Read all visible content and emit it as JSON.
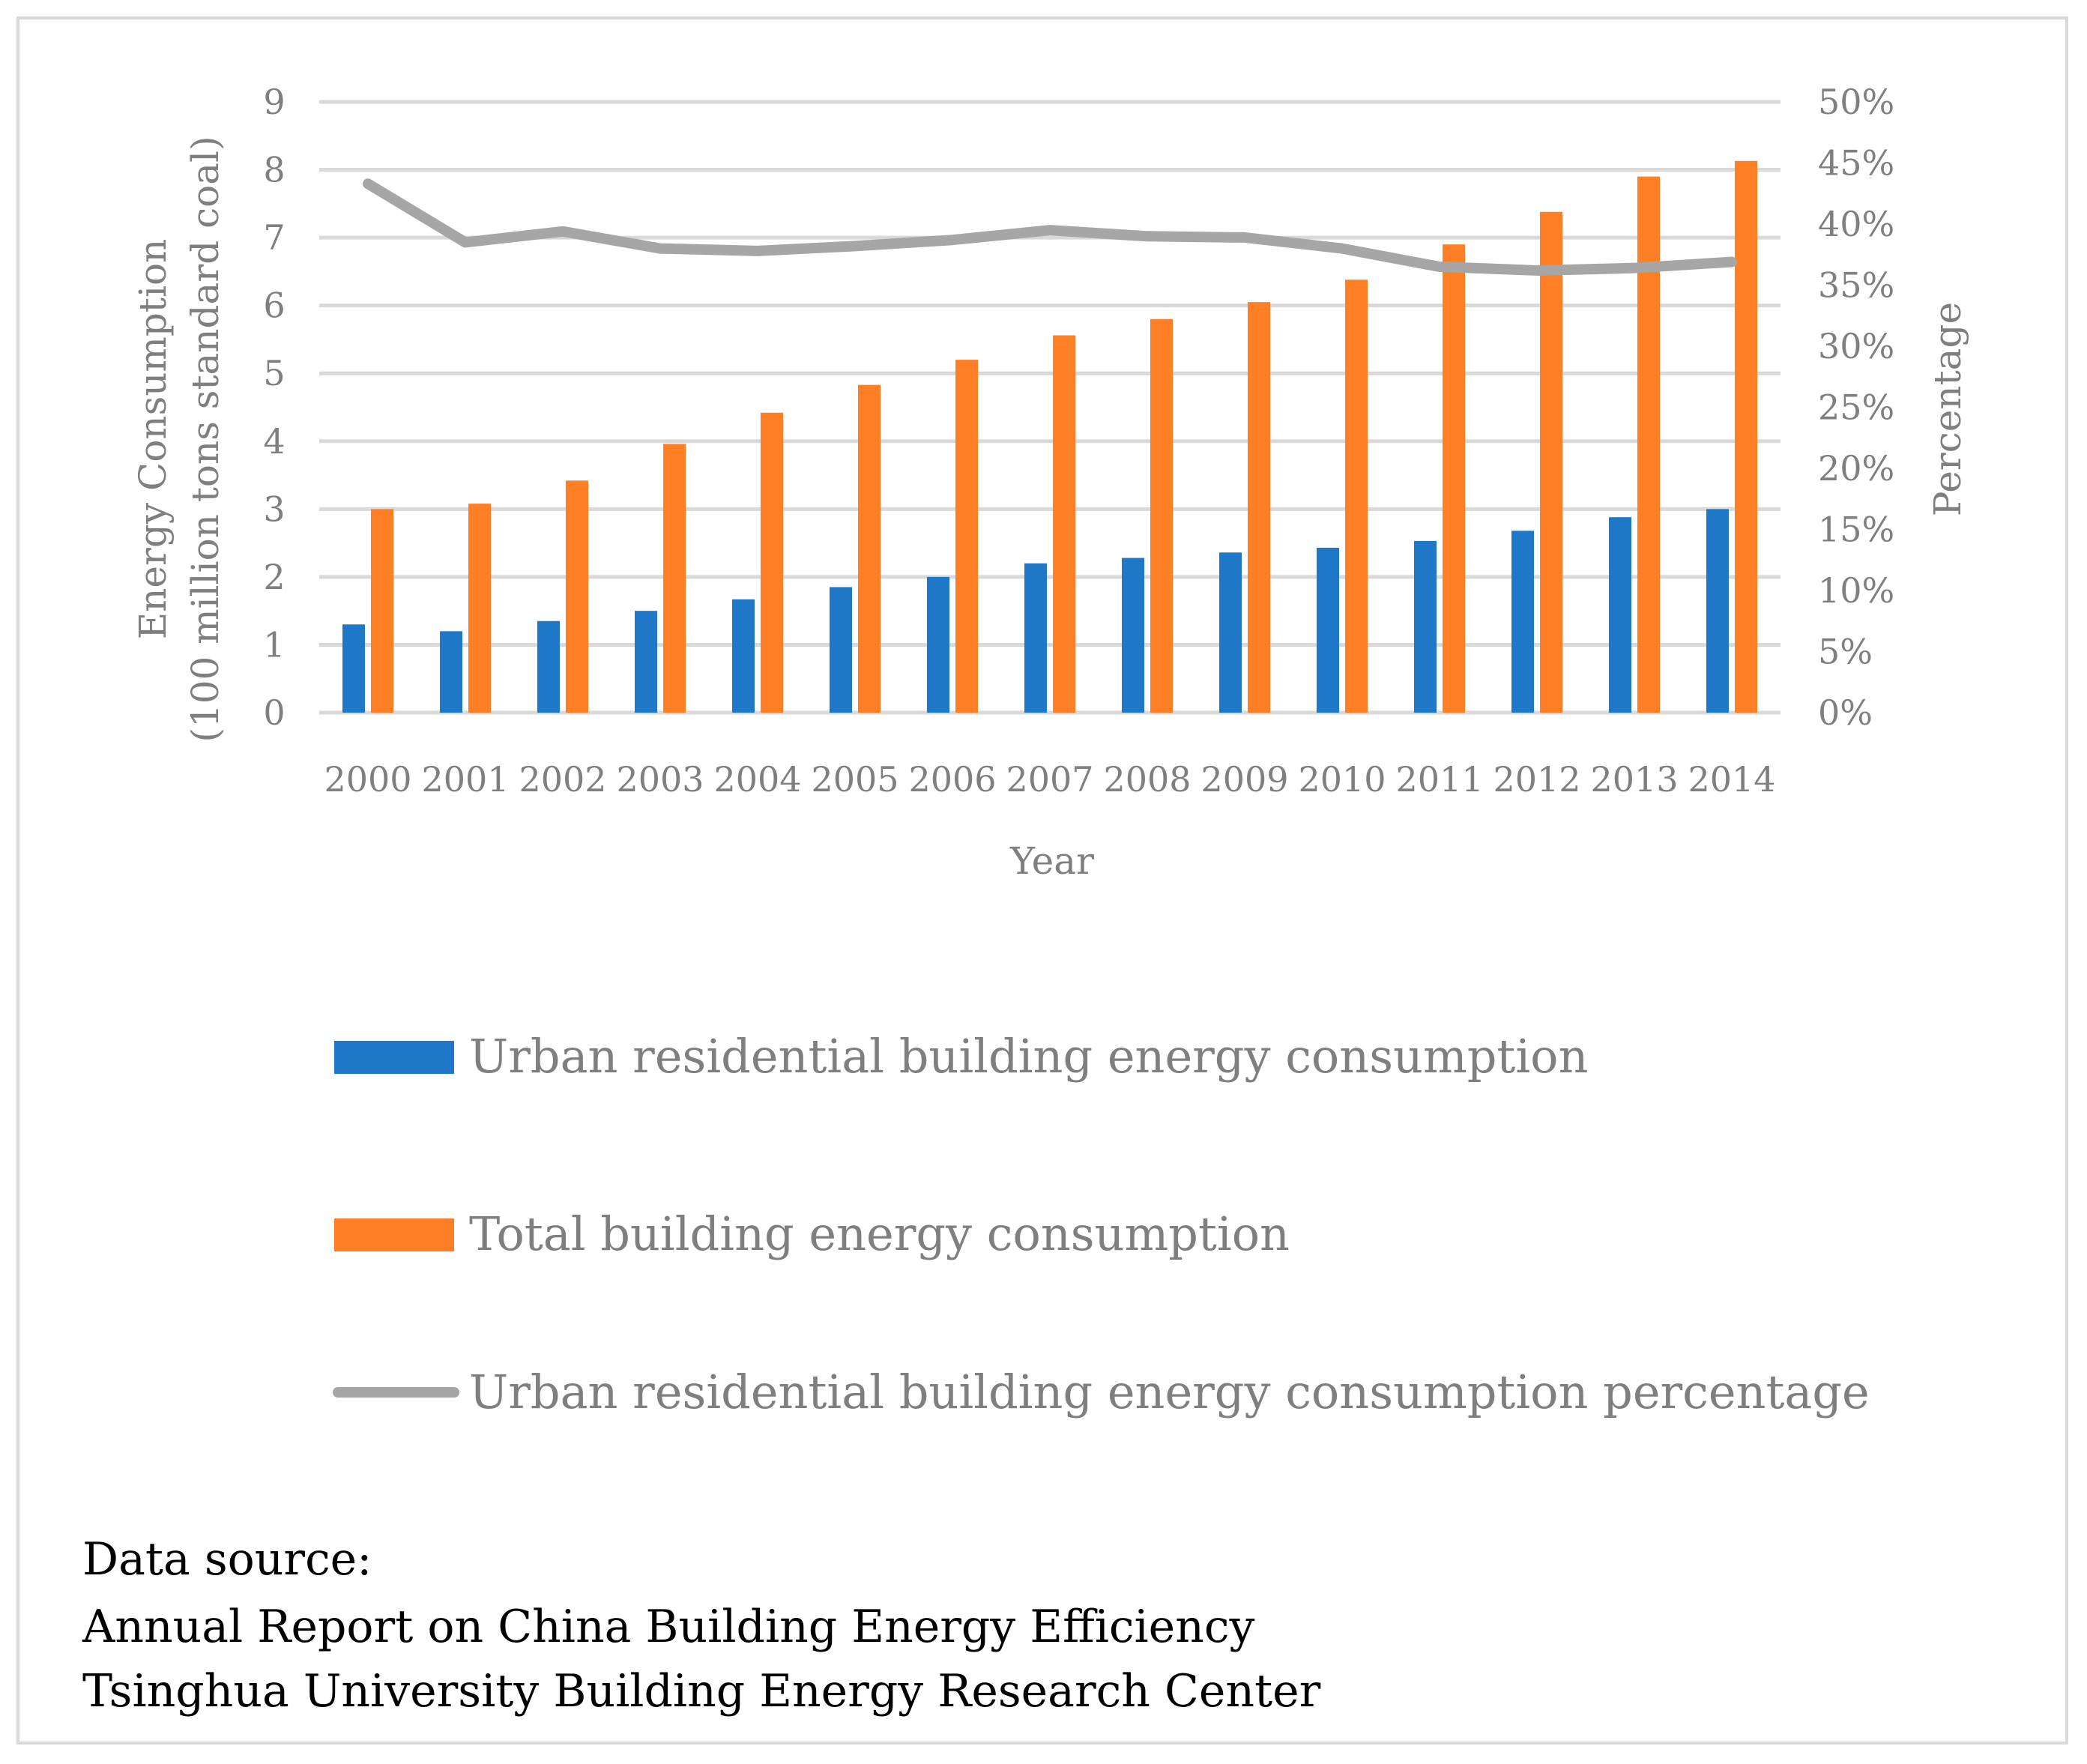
{
  "chart_data": {
    "type": "bar",
    "categories": [
      "2000",
      "2001",
      "2002",
      "2003",
      "2004",
      "2005",
      "2006",
      "2007",
      "2008",
      "2009",
      "2010",
      "2011",
      "2012",
      "2013",
      "2014"
    ],
    "series": [
      {
        "name": "Urban residential building energy consumption",
        "type": "bar",
        "axis": "left",
        "color": "#1f77c8",
        "values": [
          1.3,
          1.2,
          1.35,
          1.5,
          1.67,
          1.85,
          2.0,
          2.2,
          2.28,
          2.36,
          2.43,
          2.53,
          2.68,
          2.88,
          3.0
        ]
      },
      {
        "name": "Total building energy consumption",
        "type": "bar",
        "axis": "left",
        "color": "#ff7f27",
        "values": [
          3.0,
          3.08,
          3.42,
          3.96,
          4.42,
          4.83,
          5.2,
          5.56,
          5.8,
          6.05,
          6.38,
          6.9,
          7.38,
          7.9,
          8.13
        ]
      },
      {
        "name": "Urban residential building energy consumption percentage",
        "type": "line",
        "axis": "right",
        "color": "#a6a6a6",
        "values": [
          43.3,
          38.5,
          39.4,
          38.0,
          37.8,
          38.2,
          38.7,
          39.5,
          39.0,
          38.9,
          38.0,
          36.5,
          36.2,
          36.4,
          36.9
        ]
      }
    ],
    "ylabel": [
      "Energy Consumption",
      "(100 million tons standard coal)"
    ],
    "y2label": "Percentage",
    "xlabel": "Year",
    "ylim": [
      0,
      9
    ],
    "y_ticks": [
      "0",
      "1",
      "2",
      "3",
      "4",
      "5",
      "6",
      "7",
      "8",
      "9"
    ],
    "y2lim": [
      0,
      50
    ],
    "y2_ticks": [
      "0%",
      "5%",
      "10%",
      "15%",
      "20%",
      "25%",
      "30%",
      "35%",
      "40%",
      "45%",
      "50%"
    ],
    "grid": true,
    "legend_position": "bottom"
  },
  "source": {
    "label": "Data source:",
    "lines": [
      "Annual Report on China Building Energy Efficiency",
      "Tsinghua University Building Energy Research Center"
    ]
  }
}
